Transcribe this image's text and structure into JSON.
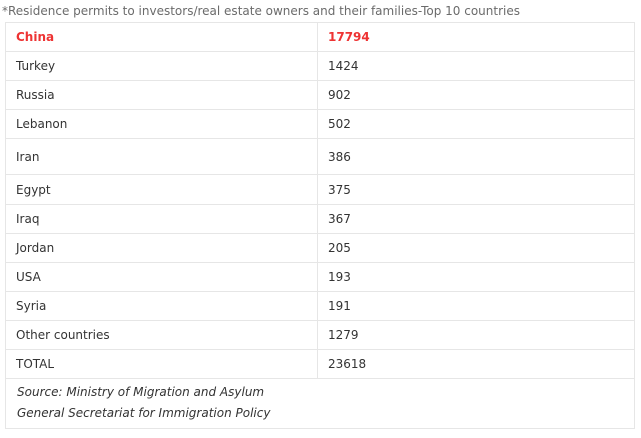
{
  "caption": "*Residence permits to investors/real estate owners and their families-Top 10 countries",
  "table": {
    "rows": [
      {
        "country": "China",
        "value": "17794"
      },
      {
        "country": "Turkey",
        "value": "1424"
      },
      {
        "country": "Russia",
        "value": "902"
      },
      {
        "country": "Lebanon",
        "value": "502"
      },
      {
        "country": "Iran",
        "value": "386"
      },
      {
        "country": "Egypt",
        "value": "375"
      },
      {
        "country": "Iraq",
        "value": "367"
      },
      {
        "country": "Jordan",
        "value": "205"
      },
      {
        "country": "USA",
        "value": "193"
      },
      {
        "country": "Syria",
        "value": "191"
      },
      {
        "country": "Other countries",
        "value": "1279"
      },
      {
        "country": "TOTAL",
        "value": "23618"
      }
    ]
  },
  "source": {
    "line1": "Source:  Ministry of Migration and Asylum",
    "line2": "General Secretariat for Immigration Policy"
  },
  "colors": {
    "highlight": "#ee3333",
    "text": "#333333",
    "border": "#e6e6e6",
    "caption": "#6b6b6b"
  }
}
